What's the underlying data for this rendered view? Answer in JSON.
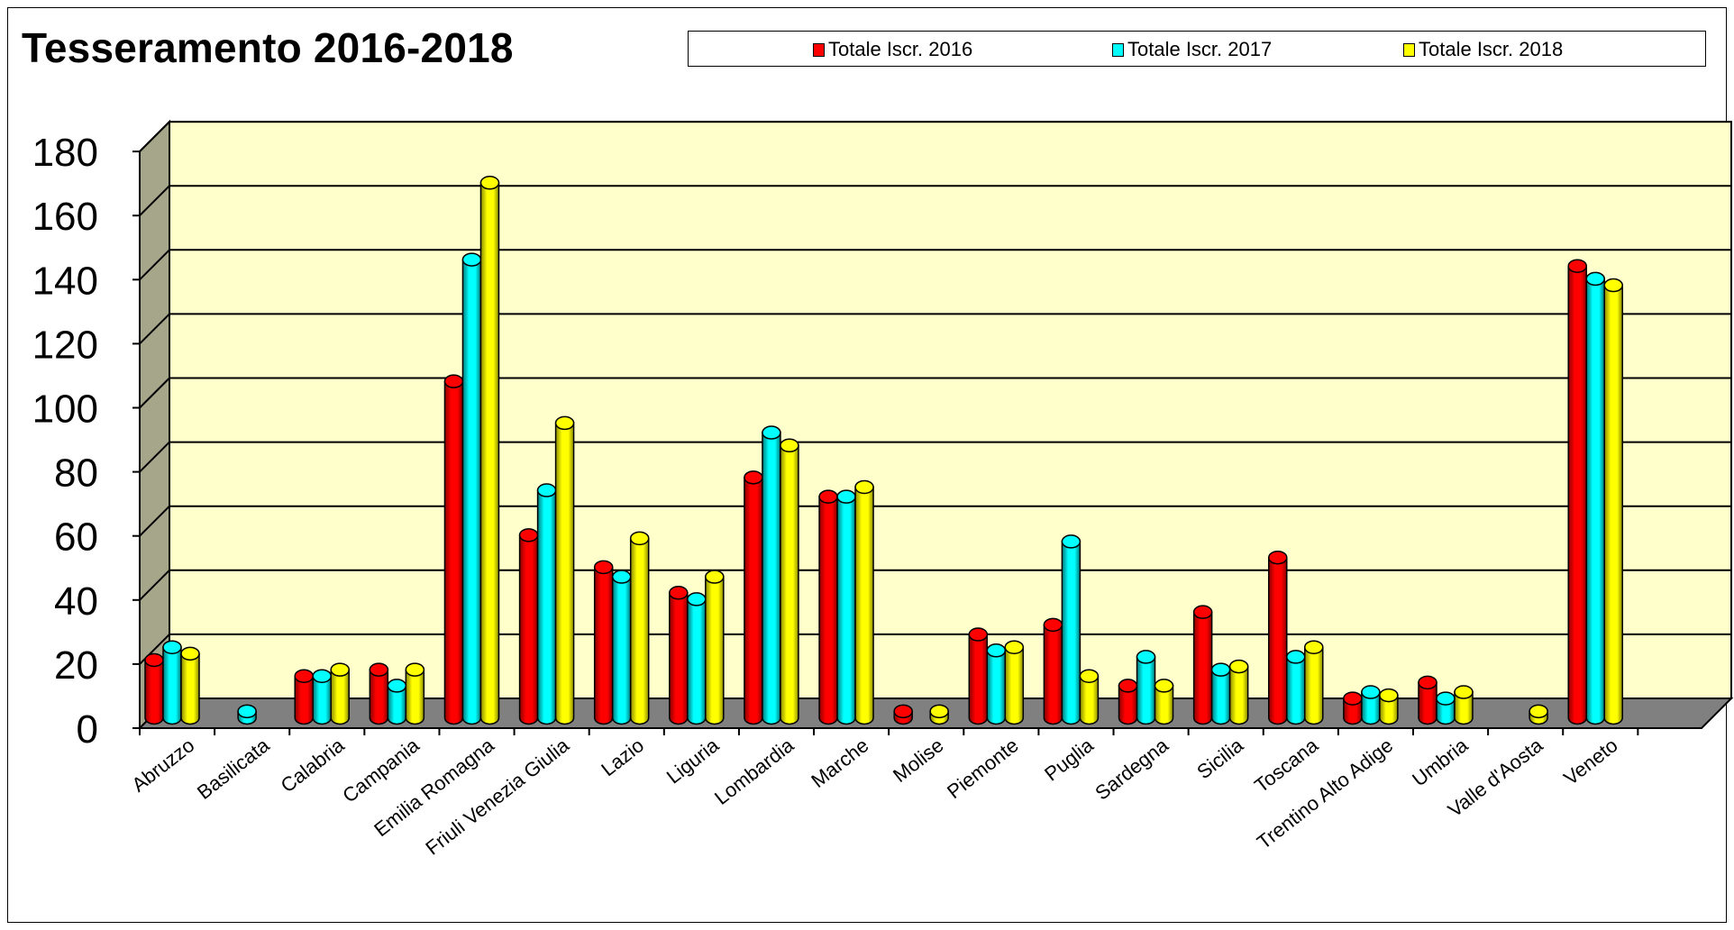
{
  "title": "Tesseramento 2016-2018",
  "colors": {
    "series": [
      "#ff0000",
      "#00ffff",
      "#ffff00"
    ],
    "series_dark": [
      "#8b0000",
      "#007a7a",
      "#8a8a00"
    ],
    "back_wall": "#ffffcc",
    "side_wall": "#a6a68a",
    "floor": "#808080"
  },
  "chart_data": {
    "type": "bar",
    "style": "3d-cylinder",
    "title": "Tesseramento 2016-2018",
    "xlabel": "",
    "ylabel": "",
    "ylim": [
      0,
      180
    ],
    "yticks": [
      0,
      20,
      40,
      60,
      80,
      100,
      120,
      140,
      160,
      180
    ],
    "grid": true,
    "legend_position": "top-right",
    "categories": [
      "Abruzzo",
      "Basilicata",
      "Calabria",
      "Campania",
      "Emilia Romagna",
      "Friuli Venezia Giulia",
      "Lazio",
      "Liguria",
      "Lombardia",
      "Marche",
      "Molise",
      "Piemonte",
      "Puglia",
      "Sardegna",
      "Sicilia",
      "Toscana",
      "Trentino Alto Adige",
      "Umbria",
      "Valle d'Aosta",
      "Veneto"
    ],
    "series": [
      {
        "name": "Totale Iscr. 2016",
        "values": [
          18,
          0,
          13,
          15,
          105,
          57,
          47,
          39,
          75,
          69,
          2,
          26,
          29,
          10,
          33,
          50,
          6,
          11,
          0,
          141
        ]
      },
      {
        "name": "Totale Iscr. 2017",
        "values": [
          22,
          2,
          13,
          10,
          143,
          71,
          44,
          37,
          89,
          69,
          0,
          21,
          55,
          19,
          15,
          19,
          8,
          6,
          0,
          137
        ]
      },
      {
        "name": "Totale Iscr. 2018",
        "values": [
          20,
          0,
          15,
          15,
          167,
          92,
          56,
          44,
          85,
          72,
          2,
          22,
          13,
          10,
          16,
          22,
          7,
          8,
          2,
          135
        ]
      }
    ]
  }
}
